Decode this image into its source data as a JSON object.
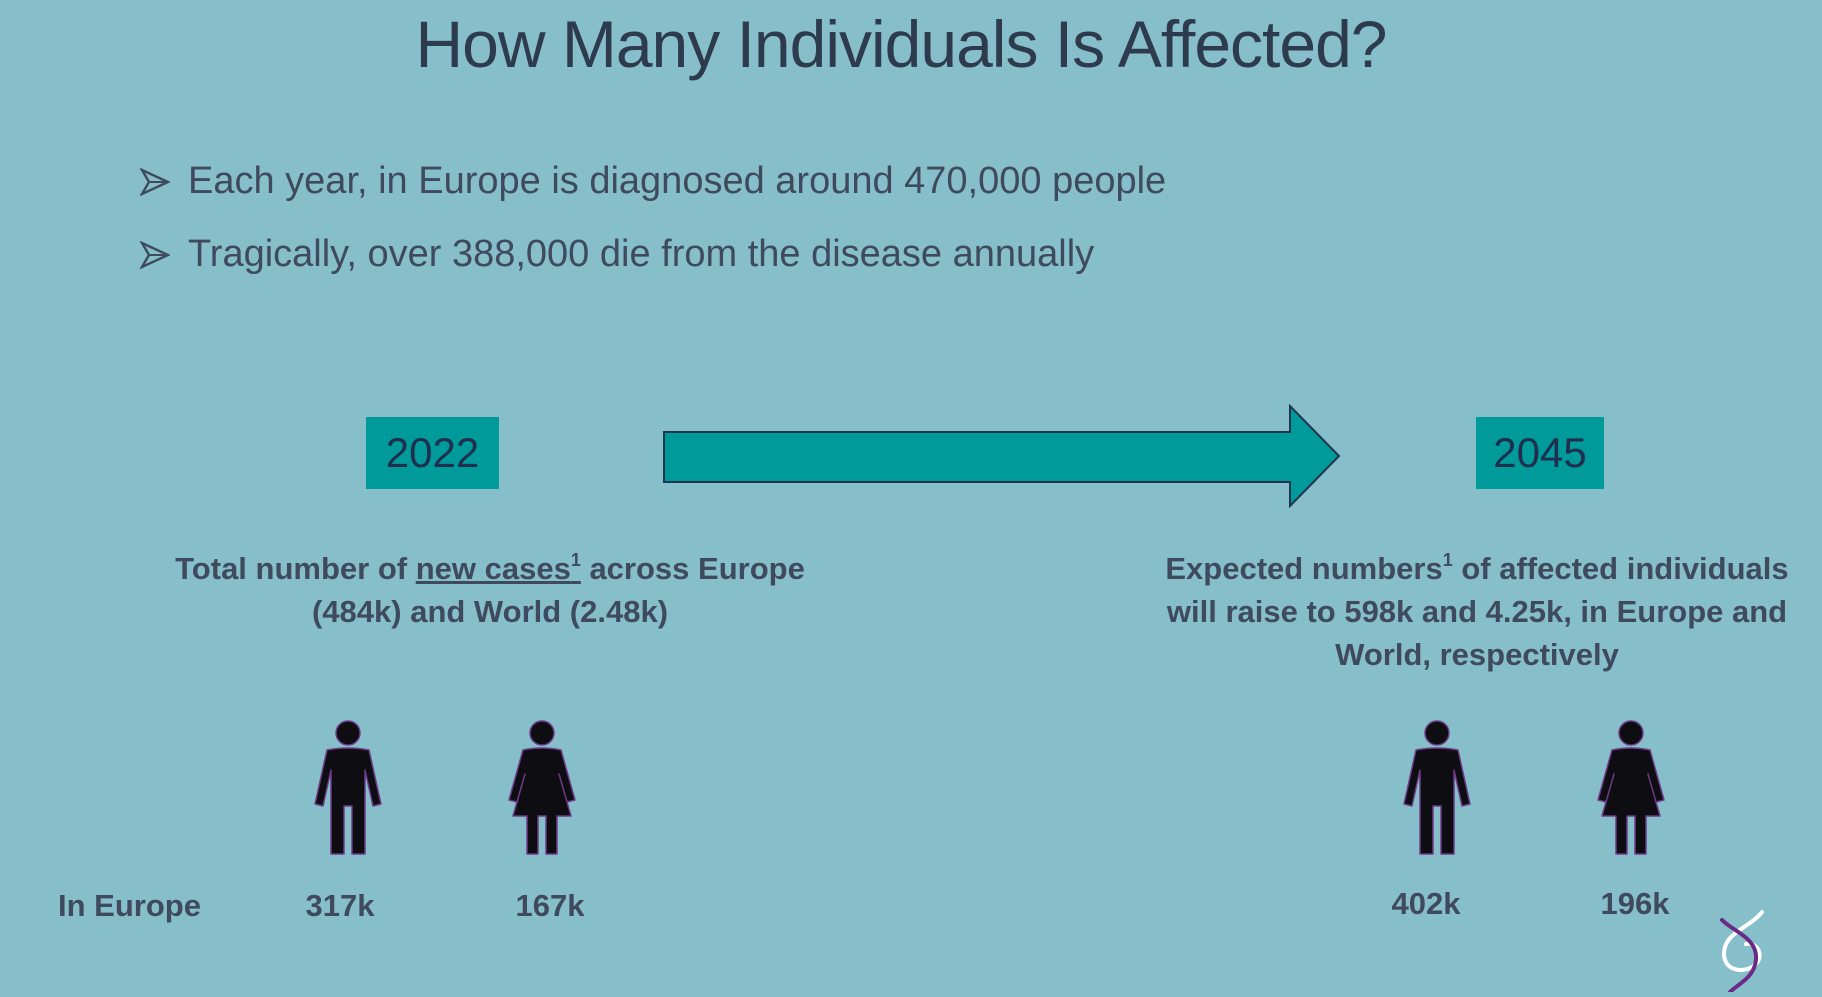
{
  "slide": {
    "title": "How Many Individuals Is Affected?",
    "bullets": [
      "Each year, in Europe is diagnosed around 470,000 people",
      "Tragically, over 388,000 die from the disease annually"
    ],
    "left": {
      "year": "2022",
      "desc_prefix": "Total number of ",
      "desc_underlined": "new cases",
      "desc_sup": "1",
      "desc_suffix": " across Europe",
      "desc_line2": "(484k) and World (2.48k)",
      "male_value": "317k",
      "female_value": "167k"
    },
    "right": {
      "year": "2045",
      "desc_prefix": "Expected numbers",
      "desc_sup": "1",
      "desc_suffix": " of affected individuals",
      "desc_line2": "will raise to 598k and 4.25k, in Europe and",
      "desc_line3": "World, respectively",
      "male_value": "402k",
      "female_value": "196k"
    },
    "row_label": "In Europe",
    "icons": {
      "bullet": "arrowhead-bullet-icon",
      "transition": "right-arrow-icon",
      "male": "male-person-icon",
      "female": "female-person-icon",
      "logo": "dna-logo-icon"
    },
    "colors": {
      "background": "#86bfca",
      "accent": "#009a9a",
      "text": "#3f4a5e",
      "logo": "#6b2a86"
    }
  }
}
